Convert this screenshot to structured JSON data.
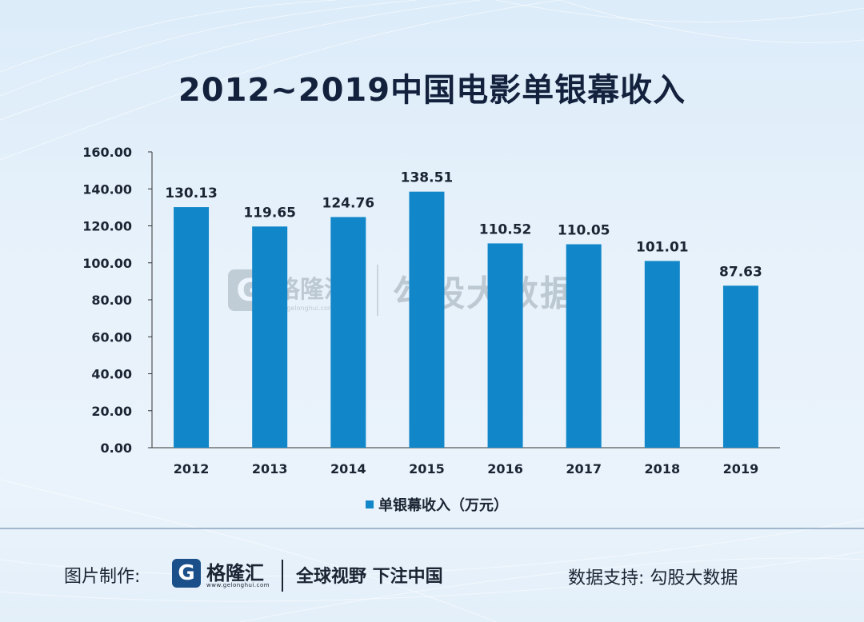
{
  "page": {
    "title": "2012~2019中国电影单银幕收入"
  },
  "watermark": {
    "logo_letter": "G",
    "brand": "格隆汇",
    "url": "www.gelonghui.com",
    "text": "勾股大数据"
  },
  "footer": {
    "made_by_label": "图片制作:",
    "logo_letter": "G",
    "brand": "格隆汇",
    "url": "www.gelonghui.com",
    "slogan": "全球视野 下注中国",
    "data_support": "数据支持: 勾股大数据"
  },
  "colors": {
    "bar": "#1187c9",
    "axis": "#333333",
    "title": "#14213d"
  },
  "chart_data": {
    "type": "bar",
    "title": "2012~2019中国电影单银幕收入",
    "categories": [
      "2012",
      "2013",
      "2014",
      "2015",
      "2016",
      "2017",
      "2018",
      "2019"
    ],
    "series": [
      {
        "name": "单银幕收入（万元）",
        "values": [
          130.13,
          119.65,
          124.76,
          138.51,
          110.52,
          110.05,
          101.01,
          87.63
        ]
      }
    ],
    "data_labels": [
      "130.13",
      "119.65",
      "124.76",
      "138.51",
      "110.52",
      "110.05",
      "101.01",
      "87.63"
    ],
    "ylim": [
      0,
      160
    ],
    "yticks": [
      "0.00",
      "20.00",
      "40.00",
      "60.00",
      "80.00",
      "100.00",
      "120.00",
      "140.00",
      "160.00"
    ],
    "legend_position": "bottom",
    "grid": false
  }
}
